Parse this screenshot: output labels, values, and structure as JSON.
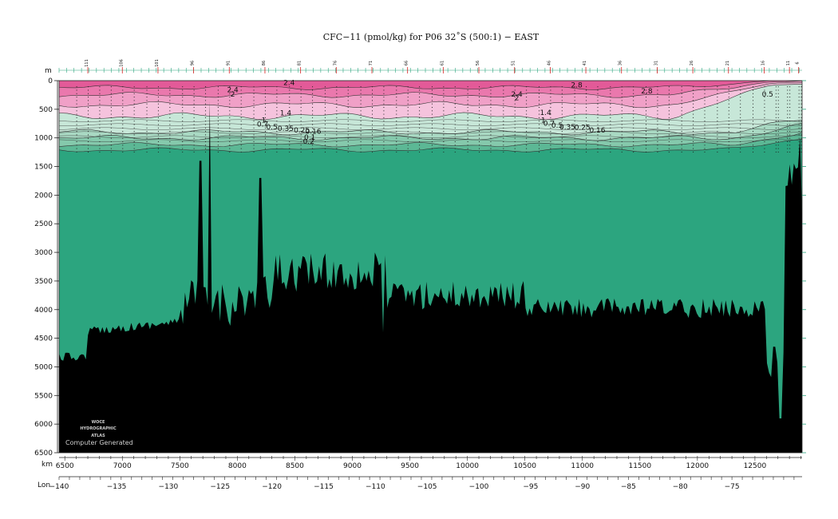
{
  "chart_data": {
    "type": "heatmap",
    "title": "CFC−11 (pmol/kg) for P06 32˚S (500:1) − EAST",
    "y_unit": "m",
    "x_unit": "km",
    "lon_label": "Lon",
    "x_range": [
      6450,
      12910
    ],
    "y_range": [
      0,
      6500
    ],
    "y_reversed": true,
    "y_ticks": [
      0,
      500,
      1000,
      1500,
      2000,
      2500,
      3000,
      3500,
      4000,
      4500,
      5000,
      5500,
      6000,
      6500
    ],
    "x_ticks": [
      6500,
      7000,
      7500,
      8000,
      8500,
      9000,
      9500,
      10000,
      10500,
      11000,
      11500,
      12000,
      12500
    ],
    "lon_ticks": [
      {
        "lon": "−140",
        "km": 6450
      },
      {
        "lon": "−135",
        "km": 6950
      },
      {
        "lon": "−130",
        "km": 7400
      },
      {
        "lon": "−125",
        "km": 7850
      },
      {
        "lon": "−120",
        "km": 8300
      },
      {
        "lon": "−115",
        "km": 8750
      },
      {
        "lon": "−110",
        "km": 9200
      },
      {
        "lon": "−105",
        "km": 9650
      },
      {
        "lon": "−100",
        "km": 10100
      },
      {
        "lon": "−95",
        "km": 10550
      },
      {
        "lon": "−90",
        "km": 11000
      },
      {
        "lon": "−85",
        "km": 11400
      },
      {
        "lon": "−80",
        "km": 11850
      },
      {
        "lon": "−75",
        "km": 12300
      }
    ],
    "stations": [
      {
        "label": "111",
        "km": 6700
      },
      {
        "label": "106",
        "km": 7000
      },
      {
        "label": "101",
        "km": 7310
      },
      {
        "label": "96",
        "km": 7620
      },
      {
        "label": "91",
        "km": 7930
      },
      {
        "label": "86",
        "km": 8240
      },
      {
        "label": "81",
        "km": 8550
      },
      {
        "label": "76",
        "km": 8860
      },
      {
        "label": "71",
        "km": 9170
      },
      {
        "label": "66",
        "km": 9480
      },
      {
        "label": "61",
        "km": 9790
      },
      {
        "label": "56",
        "km": 10100
      },
      {
        "label": "51",
        "km": 10410
      },
      {
        "label": "46",
        "km": 10720
      },
      {
        "label": "41",
        "km": 11030
      },
      {
        "label": "36",
        "km": 11340
      },
      {
        "label": "31",
        "km": 11650
      },
      {
        "label": "26",
        "km": 11960
      },
      {
        "label": "21",
        "km": 12270
      },
      {
        "label": "16",
        "km": 12580
      },
      {
        "label": "11",
        "km": 12800
      },
      {
        "label": "6",
        "km": 12880
      }
    ],
    "contour_labels": [
      {
        "text": "2.4",
        "km": 8450,
        "depth": 80
      },
      {
        "text": "2.4",
        "km": 7960,
        "depth": 200
      },
      {
        "text": "2",
        "km": 7960,
        "depth": 280
      },
      {
        "text": "1.4",
        "km": 8420,
        "depth": 610
      },
      {
        "text": "1",
        "km": 8230,
        "depth": 730
      },
      {
        "text": "0.7",
        "km": 8220,
        "depth": 800
      },
      {
        "text": "0.5",
        "km": 8300,
        "depth": 850
      },
      {
        "text": "0.35",
        "km": 8420,
        "depth": 880
      },
      {
        "text": "0.25",
        "km": 8560,
        "depth": 910
      },
      {
        "text": "0.16",
        "km": 8660,
        "depth": 930
      },
      {
        "text": "0.1",
        "km": 8630,
        "depth": 1030
      },
      {
        "text": "0.2",
        "km": 8620,
        "depth": 1100
      },
      {
        "text": "2.4",
        "km": 10430,
        "depth": 280
      },
      {
        "text": "2",
        "km": 10430,
        "depth": 340
      },
      {
        "text": "2.8",
        "km": 10950,
        "depth": 120
      },
      {
        "text": "2.8",
        "km": 11560,
        "depth": 220
      },
      {
        "text": "1.4",
        "km": 10680,
        "depth": 600
      },
      {
        "text": "1",
        "km": 10660,
        "depth": 730
      },
      {
        "text": "0.7",
        "km": 10710,
        "depth": 790
      },
      {
        "text": "0.5",
        "km": 10780,
        "depth": 820
      },
      {
        "text": "0.35",
        "km": 10870,
        "depth": 850
      },
      {
        "text": "0.25",
        "km": 11000,
        "depth": 860
      },
      {
        "text": "0.16",
        "km": 11130,
        "depth": 910
      },
      {
        "text": "0.5",
        "km": 12610,
        "depth": 280
      }
    ],
    "colors": {
      "deep": "#2ca57f",
      "band_0_1": "#5cb895",
      "band_0_2": "#85c9ac",
      "band_0_35": "#a9d9c3",
      "band_0_7": "#c7e7d8",
      "band_1_4": "#f5c3dd",
      "band_2": "#f0a0c7",
      "band_2_4": "#ea78ad",
      "band_2_8": "#e35a98",
      "bathymetry": "#000000"
    }
  },
  "credits": {
    "logo_line1": "WOCE",
    "logo_line2": "HYDROGRAPHIC",
    "logo_line3": "ATLAS",
    "computer_generated": "Computer Generated"
  }
}
